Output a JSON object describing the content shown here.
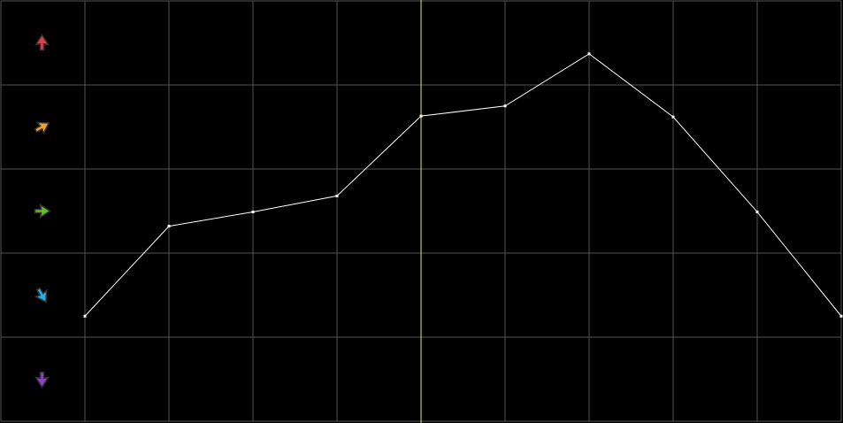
{
  "chart_data": {
    "type": "line",
    "title": "",
    "xlabel": "",
    "ylabel": "",
    "x": [
      1,
      2,
      3,
      4,
      5,
      6,
      7,
      8,
      9,
      10
    ],
    "values": [
      1.25,
      2.32,
      2.49,
      2.68,
      3.63,
      3.75,
      4.37,
      3.62,
      2.49,
      1.25
    ],
    "ylim": [
      0,
      5
    ],
    "xlim": [
      0,
      10
    ],
    "grid": true,
    "marker_x": 5,
    "colors": {
      "background": "#000000",
      "grid": "#555555",
      "line": "#ffffff",
      "marker_line": "#e8e87a"
    },
    "row_icons": [
      {
        "icon": "arrow-up-icon",
        "color": "#e0404a",
        "angle": 0
      },
      {
        "icon": "arrow-up-right-icon",
        "color": "#f0a030",
        "angle": 60
      },
      {
        "icon": "arrow-right-icon",
        "color": "#60c020",
        "angle": 90
      },
      {
        "icon": "arrow-down-right-icon",
        "color": "#20b0e8",
        "angle": 150
      },
      {
        "icon": "arrow-down-icon",
        "color": "#9040c0",
        "angle": 180
      }
    ]
  }
}
